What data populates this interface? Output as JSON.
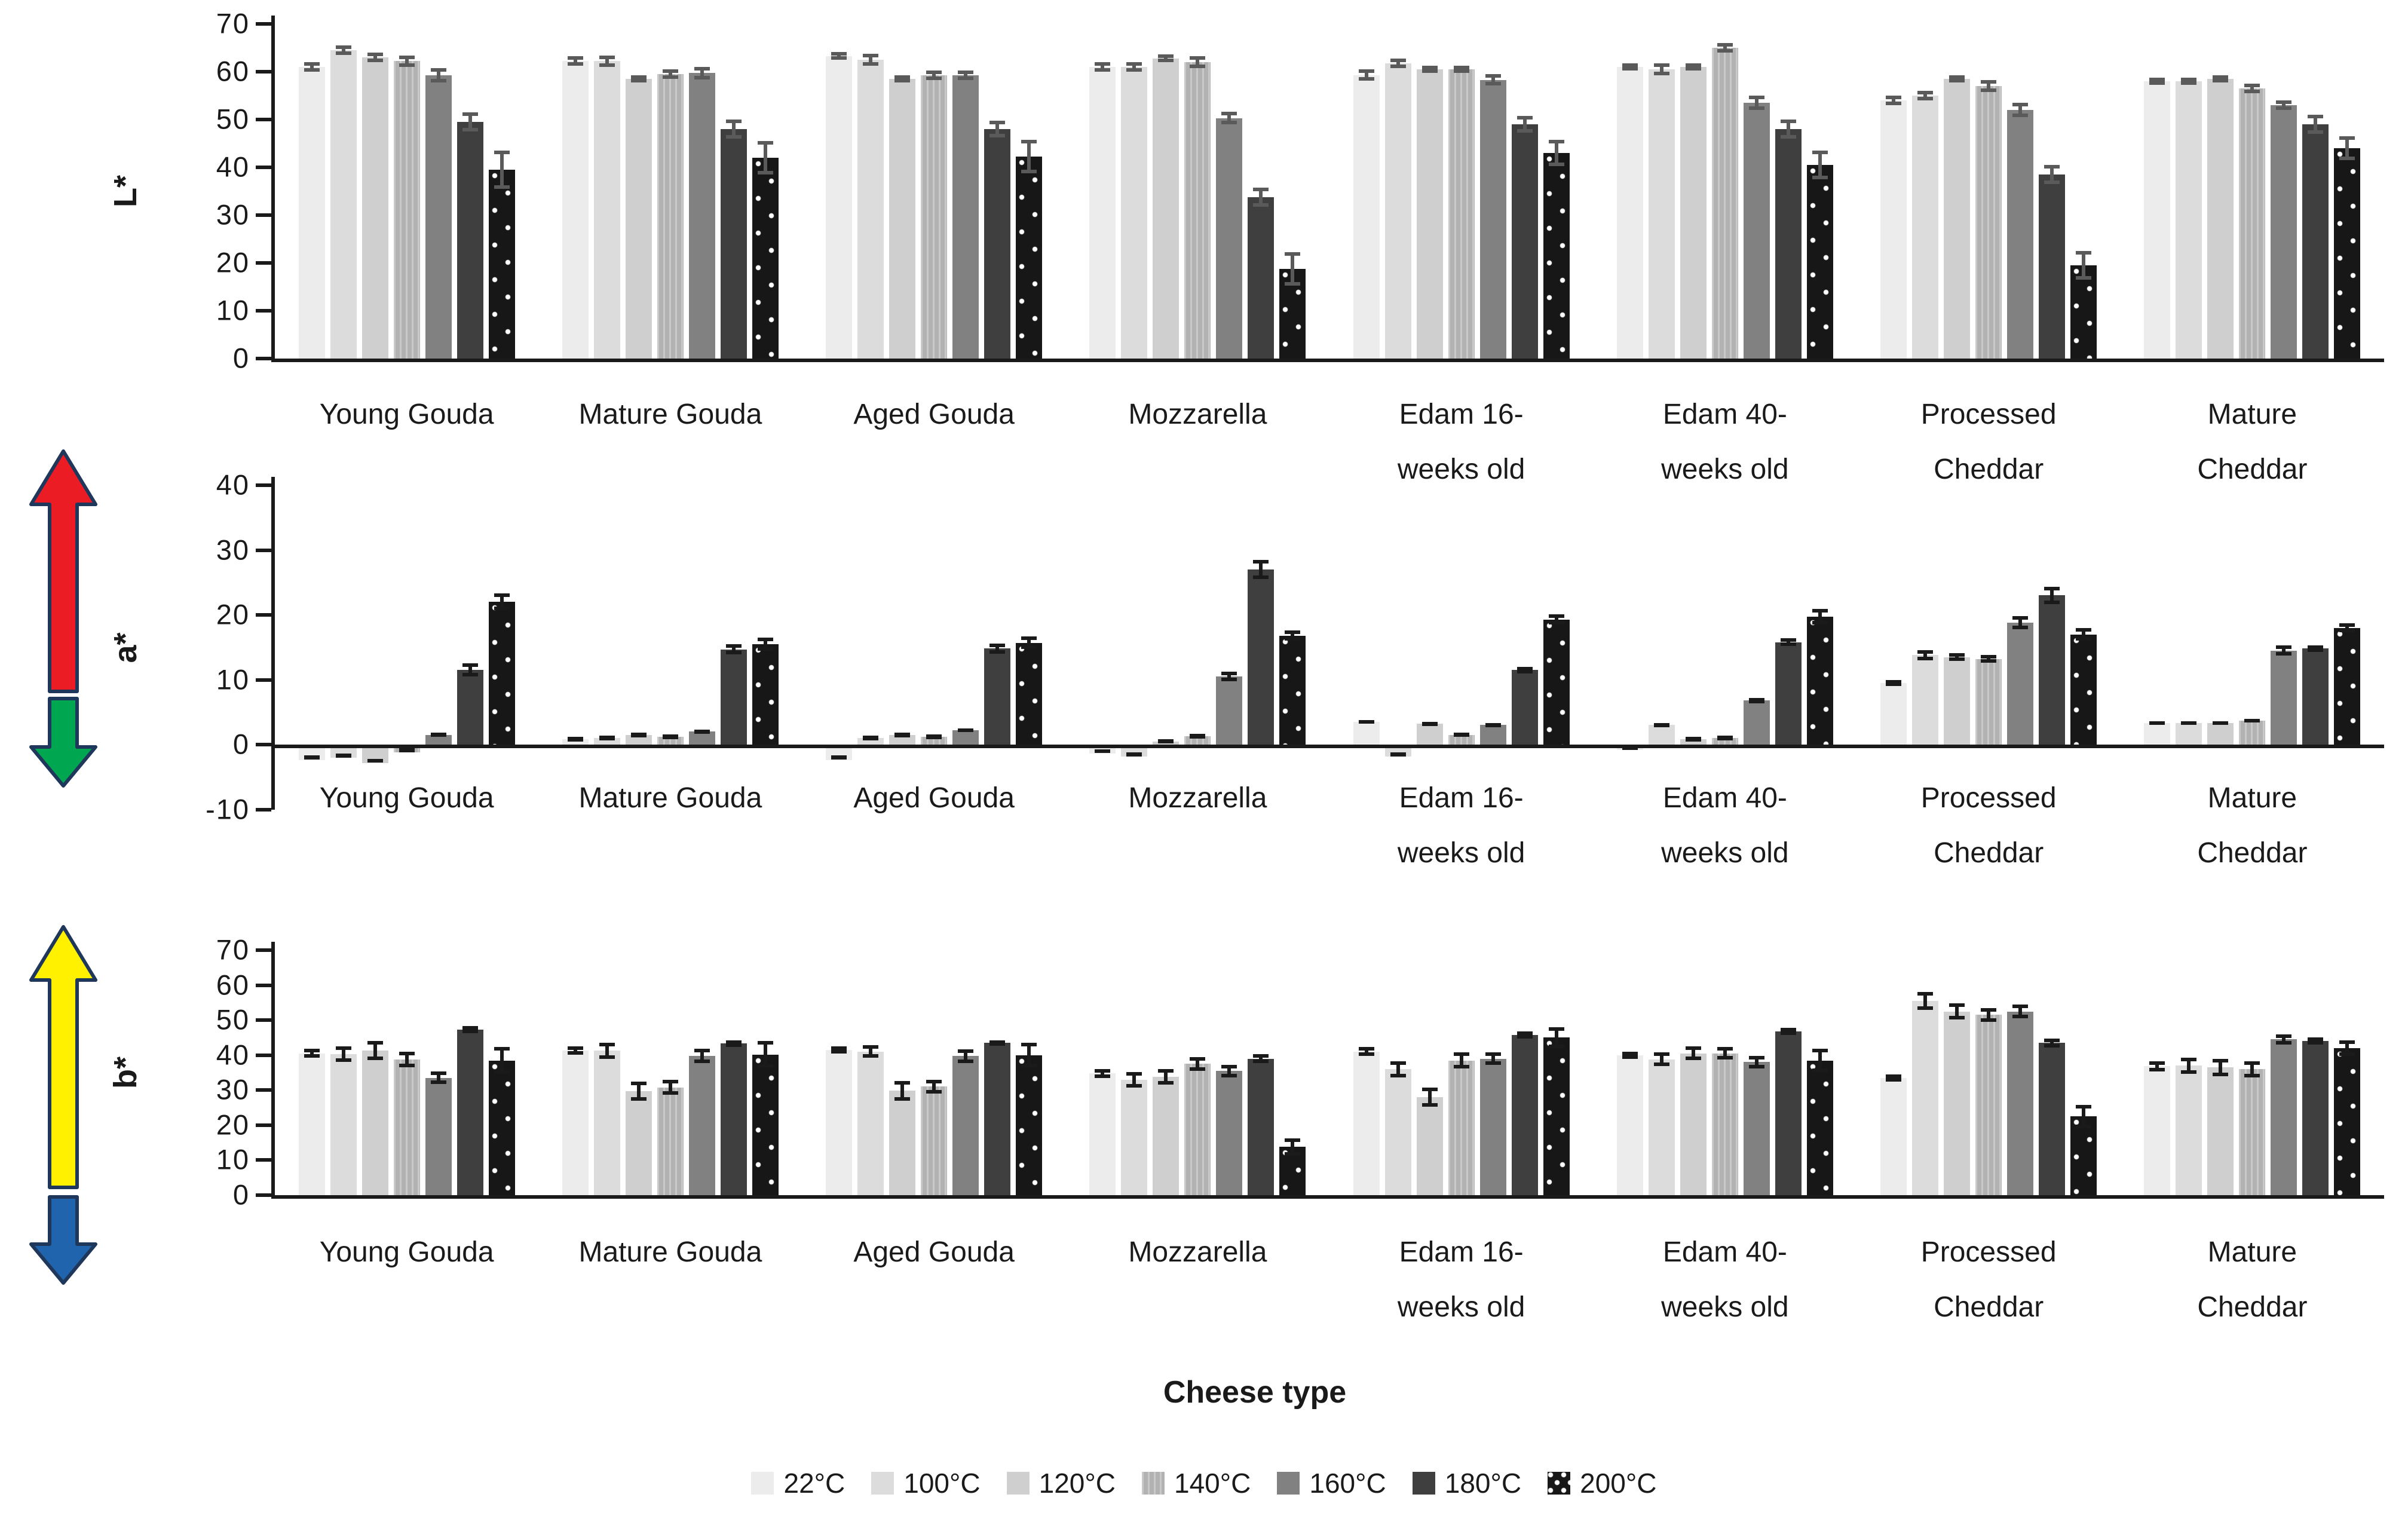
{
  "figure": {
    "xlabel": "Cheese type"
  },
  "legend": {
    "position": "bottom-center",
    "items": [
      {
        "label": "22°C",
        "color": "#ececec",
        "pattern": "none"
      },
      {
        "label": "100°C",
        "color": "#dcdcdc",
        "pattern": "none"
      },
      {
        "label": "120°C",
        "color": "#cfcfcf",
        "pattern": "none"
      },
      {
        "label": "140°C",
        "color": "#b2b2b2",
        "pattern": "faint-stripes"
      },
      {
        "label": "160°C",
        "color": "#818181",
        "pattern": "none"
      },
      {
        "label": "180°C",
        "color": "#3f3f3f",
        "pattern": "none"
      },
      {
        "label": "200°C",
        "color": "#171717",
        "pattern": "white-dots"
      }
    ]
  },
  "decorations": {
    "a_axis_arrows": {
      "up_color": "#ec1c24",
      "down_color": "#00a650",
      "outline_color": "#20375c",
      "meaning": "a* axis: red up, green down"
    },
    "b_axis_arrows": {
      "up_color": "#fff100",
      "down_color": "#1f64ac",
      "outline_color": "#20375c",
      "meaning": "b* axis: yellow up, blue down"
    }
  },
  "error_bar_colors": [
    "#5a5a5a",
    "#1a1a1a",
    "#1a1a1a"
  ],
  "chart_data": [
    {
      "type": "bar",
      "panel_id": "l-star",
      "ylabel": "L*",
      "ylim": [
        0,
        70
      ],
      "yticks": [
        0,
        10,
        20,
        30,
        40,
        50,
        60,
        70
      ],
      "grid": false,
      "legend_entries": [
        "22°C",
        "100°C",
        "120°C",
        "140°C",
        "160°C",
        "180°C",
        "200°C"
      ],
      "categories": [
        {
          "label": "Young Gouda",
          "lines": [
            "Young Gouda"
          ]
        },
        {
          "label": "Mature Gouda",
          "lines": [
            "Mature Gouda"
          ]
        },
        {
          "label": "Aged Gouda",
          "lines": [
            "Aged Gouda"
          ]
        },
        {
          "label": "Mozzarella",
          "lines": [
            "Mozzarella"
          ]
        },
        {
          "label": "Edam 16-weeks old",
          "lines": [
            "Edam 16-",
            "weeks old"
          ]
        },
        {
          "label": "Edam 40-weeks old",
          "lines": [
            "Edam 40-",
            "weeks old"
          ]
        },
        {
          "label": "Processed Cheddar",
          "lines": [
            "Processed",
            "Cheddar"
          ]
        },
        {
          "label": "Mature Cheddar",
          "lines": [
            "Mature",
            "Cheddar"
          ]
        }
      ],
      "series": [
        {
          "name": "22°C",
          "values": [
            61.0,
            62.2,
            63.3,
            61.0,
            59.3,
            61.0,
            54.0,
            58.0
          ],
          "errors": [
            1.0,
            1.0,
            0.8,
            1.0,
            1.2,
            0.8,
            1.0,
            0.8
          ]
        },
        {
          "name": "100°C",
          "values": [
            64.5,
            62.2,
            62.5,
            61.0,
            61.8,
            60.5,
            55.0,
            58.0
          ],
          "errors": [
            1.0,
            1.2,
            1.2,
            1.0,
            1.0,
            1.2,
            1.0,
            0.8
          ]
        },
        {
          "name": "120°C",
          "values": [
            63.0,
            58.5,
            58.5,
            62.8,
            60.5,
            61.0,
            58.5,
            58.5
          ],
          "errors": [
            1.0,
            0.8,
            0.8,
            0.8,
            0.8,
            0.8,
            0.8,
            0.8
          ]
        },
        {
          "name": "140°C",
          "values": [
            62.2,
            59.5,
            59.3,
            62.0,
            60.5,
            65.0,
            57.0,
            56.5
          ],
          "errors": [
            1.2,
            1.0,
            1.0,
            1.2,
            0.8,
            1.0,
            1.2,
            1.0
          ]
        },
        {
          "name": "160°C",
          "values": [
            59.3,
            59.7,
            59.3,
            50.3,
            58.3,
            53.5,
            52.0,
            53.0
          ],
          "errors": [
            1.5,
            1.3,
            1.0,
            1.3,
            1.2,
            1.5,
            1.5,
            1.0
          ]
        },
        {
          "name": "180°C",
          "values": [
            49.5,
            48.0,
            48.0,
            33.8,
            49.0,
            48.0,
            38.5,
            49.0
          ],
          "errors": [
            2.0,
            2.0,
            1.8,
            2.0,
            1.8,
            2.0,
            2.0,
            2.0
          ]
        },
        {
          "name": "200°C",
          "values": [
            39.5,
            42.0,
            42.3,
            18.8,
            43.0,
            40.5,
            19.5,
            44.0
          ],
          "errors": [
            4.0,
            3.5,
            3.5,
            3.5,
            2.8,
            3.0,
            3.0,
            2.5
          ]
        }
      ]
    },
    {
      "type": "bar",
      "panel_id": "a-star",
      "ylabel": "a*",
      "ylim": [
        -10,
        40
      ],
      "yticks": [
        -10,
        0,
        10,
        20,
        30,
        40
      ],
      "grid": false,
      "legend_entries": [
        "22°C",
        "100°C",
        "120°C",
        "140°C",
        "160°C",
        "180°C",
        "200°C"
      ],
      "categories": [
        {
          "label": "Young Gouda",
          "lines": [
            "Young Gouda"
          ]
        },
        {
          "label": "Mature Gouda",
          "lines": [
            "Mature Gouda"
          ]
        },
        {
          "label": "Aged Gouda",
          "lines": [
            "Aged Gouda"
          ]
        },
        {
          "label": "Mozzarella",
          "lines": [
            "Mozzarella"
          ]
        },
        {
          "label": "Edam 16-weeks old",
          "lines": [
            "Edam 16-",
            "weeks old"
          ]
        },
        {
          "label": "Edam 40-weeks old",
          "lines": [
            "Edam 40-",
            "weeks old"
          ]
        },
        {
          "label": "Processed Cheddar",
          "lines": [
            "Processed",
            "Cheddar"
          ]
        },
        {
          "label": "Mature Cheddar",
          "lines": [
            "Mature",
            "Cheddar"
          ]
        }
      ],
      "series": [
        {
          "name": "22°C",
          "values": [
            -2.0,
            0.8,
            -2.0,
            -1.0,
            3.5,
            -0.5,
            9.5,
            3.3
          ],
          "errors": [
            0.3,
            0.2,
            0.3,
            0.3,
            0.3,
            0.2,
            0.5,
            0.3
          ]
        },
        {
          "name": "100°C",
          "values": [
            -1.7,
            1.0,
            1.0,
            -1.5,
            -1.5,
            3.0,
            13.8,
            3.3
          ],
          "errors": [
            0.3,
            0.2,
            0.2,
            0.3,
            0.3,
            0.3,
            0.8,
            0.3
          ]
        },
        {
          "name": "120°C",
          "values": [
            -2.5,
            1.5,
            1.5,
            0.5,
            3.2,
            0.8,
            13.5,
            3.3
          ],
          "errors": [
            0.3,
            0.2,
            0.2,
            0.2,
            0.3,
            0.2,
            0.6,
            0.3
          ]
        },
        {
          "name": "140°C",
          "values": [
            -0.8,
            1.2,
            1.2,
            1.3,
            1.5,
            1.0,
            13.2,
            3.7
          ],
          "errors": [
            0.2,
            0.2,
            0.2,
            0.2,
            0.3,
            0.2,
            0.6,
            0.3
          ]
        },
        {
          "name": "160°C",
          "values": [
            1.5,
            2.0,
            2.2,
            10.5,
            3.0,
            6.8,
            18.8,
            14.5
          ],
          "errors": [
            0.3,
            0.3,
            0.3,
            0.7,
            0.3,
            0.4,
            1.0,
            0.8
          ]
        },
        {
          "name": "180°C",
          "values": [
            11.5,
            14.7,
            14.8,
            27.0,
            11.5,
            15.8,
            23.0,
            14.8
          ],
          "errors": [
            1.0,
            0.8,
            0.8,
            1.5,
            0.5,
            0.6,
            1.3,
            0.5
          ]
        },
        {
          "name": "200°C",
          "values": [
            22.0,
            15.5,
            15.7,
            16.8,
            19.3,
            19.7,
            17.0,
            18.0
          ],
          "errors": [
            1.3,
            1.0,
            1.0,
            0.8,
            0.8,
            1.2,
            1.0,
            0.7
          ]
        }
      ]
    },
    {
      "type": "bar",
      "panel_id": "b-star",
      "ylabel": "b*",
      "ylim": [
        0,
        70
      ],
      "yticks": [
        0,
        10,
        20,
        30,
        40,
        50,
        60,
        70
      ],
      "grid": false,
      "legend_entries": [
        "22°C",
        "100°C",
        "120°C",
        "140°C",
        "160°C",
        "180°C",
        "200°C"
      ],
      "categories": [
        {
          "label": "Young Gouda",
          "lines": [
            "Young Gouda"
          ]
        },
        {
          "label": "Mature Gouda",
          "lines": [
            "Mature Gouda"
          ]
        },
        {
          "label": "Aged Gouda",
          "lines": [
            "Aged Gouda"
          ]
        },
        {
          "label": "Mozzarella",
          "lines": [
            "Mozzarella"
          ]
        },
        {
          "label": "Edam 16-weeks old",
          "lines": [
            "Edam 16-",
            "weeks old"
          ]
        },
        {
          "label": "Edam 40-weeks old",
          "lines": [
            "Edam 40-",
            "weeks old"
          ]
        },
        {
          "label": "Processed Cheddar",
          "lines": [
            "Processed",
            "Cheddar"
          ]
        },
        {
          "label": "Mature Cheddar",
          "lines": [
            "Mature",
            "Cheddar"
          ]
        }
      ],
      "series": [
        {
          "name": "22°C",
          "values": [
            40.5,
            41.3,
            41.5,
            34.8,
            41.0,
            40.0,
            33.5,
            36.8
          ],
          "errors": [
            1.3,
            1.2,
            1.0,
            1.3,
            1.3,
            1.0,
            1.0,
            1.5
          ]
        },
        {
          "name": "100°C",
          "values": [
            40.3,
            41.3,
            41.0,
            33.0,
            36.0,
            38.8,
            55.5,
            37.0
          ],
          "errors": [
            2.2,
            2.3,
            1.8,
            2.2,
            2.3,
            2.0,
            2.5,
            2.3
          ]
        },
        {
          "name": "120°C",
          "values": [
            41.3,
            29.7,
            29.8,
            33.8,
            28.0,
            40.5,
            52.5,
            36.5
          ],
          "errors": [
            2.8,
            2.8,
            2.8,
            2.3,
            2.8,
            2.0,
            2.3,
            2.5
          ]
        },
        {
          "name": "140°C",
          "values": [
            38.7,
            30.8,
            31.0,
            37.5,
            38.5,
            40.5,
            51.5,
            36.0
          ],
          "errors": [
            2.2,
            2.2,
            2.0,
            2.0,
            2.3,
            1.8,
            2.0,
            2.3
          ]
        },
        {
          "name": "160°C",
          "values": [
            33.5,
            39.8,
            39.7,
            35.5,
            39.0,
            38.0,
            52.5,
            44.5
          ],
          "errors": [
            1.8,
            2.0,
            2.0,
            1.8,
            1.8,
            1.8,
            2.0,
            1.5
          ]
        },
        {
          "name": "180°C",
          "values": [
            47.3,
            43.3,
            43.5,
            39.0,
            45.8,
            46.8,
            43.5,
            44.0
          ],
          "errors": [
            1.0,
            1.0,
            0.8,
            1.3,
            1.0,
            1.0,
            1.3,
            1.0
          ]
        },
        {
          "name": "200°C",
          "values": [
            38.5,
            40.2,
            40.0,
            13.8,
            45.0,
            38.5,
            22.5,
            42.0
          ],
          "errors": [
            3.8,
            3.8,
            3.5,
            2.5,
            3.0,
            3.3,
            3.3,
            2.3
          ]
        }
      ]
    }
  ]
}
